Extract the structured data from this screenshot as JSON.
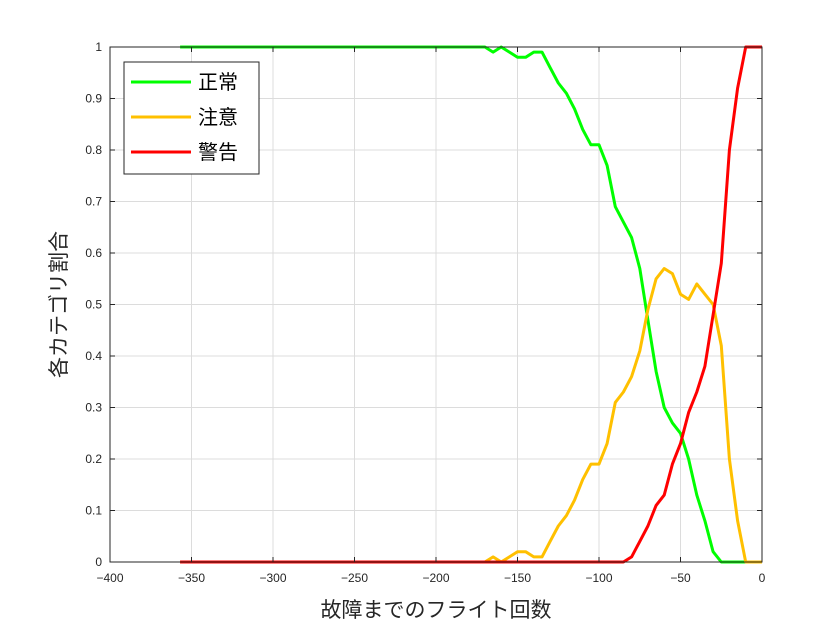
{
  "chart_data": {
    "type": "line",
    "title": "",
    "xlabel": "故障までのフライト回数",
    "ylabel": "各カテゴリ割合",
    "xlim": [
      -400,
      0
    ],
    "ylim": [
      0,
      1
    ],
    "x_ticks": [
      -400,
      -350,
      -300,
      -250,
      -200,
      -150,
      -100,
      -50,
      0
    ],
    "x_tick_labels": [
      "−400",
      "−350",
      "−300",
      "−250",
      "−200",
      "−150",
      "−100",
      "−50",
      "0"
    ],
    "y_ticks": [
      0,
      0.1,
      0.2,
      0.3,
      0.4,
      0.5,
      0.6,
      0.7,
      0.8,
      0.9,
      1
    ],
    "y_tick_labels": [
      "0",
      "0.1",
      "0.2",
      "0.3",
      "0.4",
      "0.5",
      "0.6",
      "0.7",
      "0.8",
      "0.9",
      "1"
    ],
    "grid": true,
    "legend_position": "top-left",
    "series": [
      {
        "name": "正常",
        "color": "#00ff00",
        "x": [
          -357,
          -170,
          -165,
          -160,
          -155,
          -150,
          -145,
          -140,
          -135,
          -130,
          -125,
          -120,
          -115,
          -110,
          -105,
          -100,
          -95,
          -90,
          -85,
          -80,
          -75,
          -70,
          -65,
          -60,
          -55,
          -50,
          -45,
          -40,
          -35,
          -30,
          -25,
          -20,
          -15,
          -10,
          -5,
          0
        ],
        "y": [
          1,
          1,
          0.99,
          1,
          0.99,
          0.98,
          0.98,
          0.99,
          0.99,
          0.96,
          0.93,
          0.91,
          0.88,
          0.84,
          0.81,
          0.81,
          0.77,
          0.69,
          0.66,
          0.63,
          0.57,
          0.47,
          0.37,
          0.3,
          0.27,
          0.25,
          0.2,
          0.13,
          0.08,
          0.02,
          0,
          0,
          0,
          0,
          0,
          0
        ]
      },
      {
        "name": "注意",
        "color": "#ffc000",
        "x": [
          -357,
          -170,
          -165,
          -160,
          -155,
          -150,
          -145,
          -140,
          -135,
          -130,
          -125,
          -120,
          -115,
          -110,
          -105,
          -100,
          -95,
          -90,
          -85,
          -80,
          -75,
          -70,
          -65,
          -60,
          -55,
          -50,
          -45,
          -40,
          -35,
          -30,
          -25,
          -20,
          -15,
          -10,
          -5,
          0
        ],
        "y": [
          0,
          0,
          0.01,
          0,
          0.01,
          0.02,
          0.02,
          0.01,
          0.01,
          0.04,
          0.07,
          0.09,
          0.12,
          0.16,
          0.19,
          0.19,
          0.23,
          0.31,
          0.33,
          0.36,
          0.41,
          0.49,
          0.55,
          0.57,
          0.56,
          0.52,
          0.51,
          0.54,
          0.52,
          0.5,
          0.42,
          0.2,
          0.08,
          0,
          0,
          0
        ]
      },
      {
        "name": "警告",
        "color": "#ff0000",
        "x": [
          -357,
          -85,
          -80,
          -75,
          -70,
          -65,
          -60,
          -55,
          -50,
          -45,
          -40,
          -35,
          -30,
          -25,
          -20,
          -15,
          -10,
          -5,
          0
        ],
        "y": [
          0,
          0,
          0.01,
          0.04,
          0.07,
          0.11,
          0.13,
          0.19,
          0.23,
          0.29,
          0.33,
          0.38,
          0.48,
          0.58,
          0.8,
          0.92,
          1,
          1,
          1
        ]
      }
    ]
  }
}
